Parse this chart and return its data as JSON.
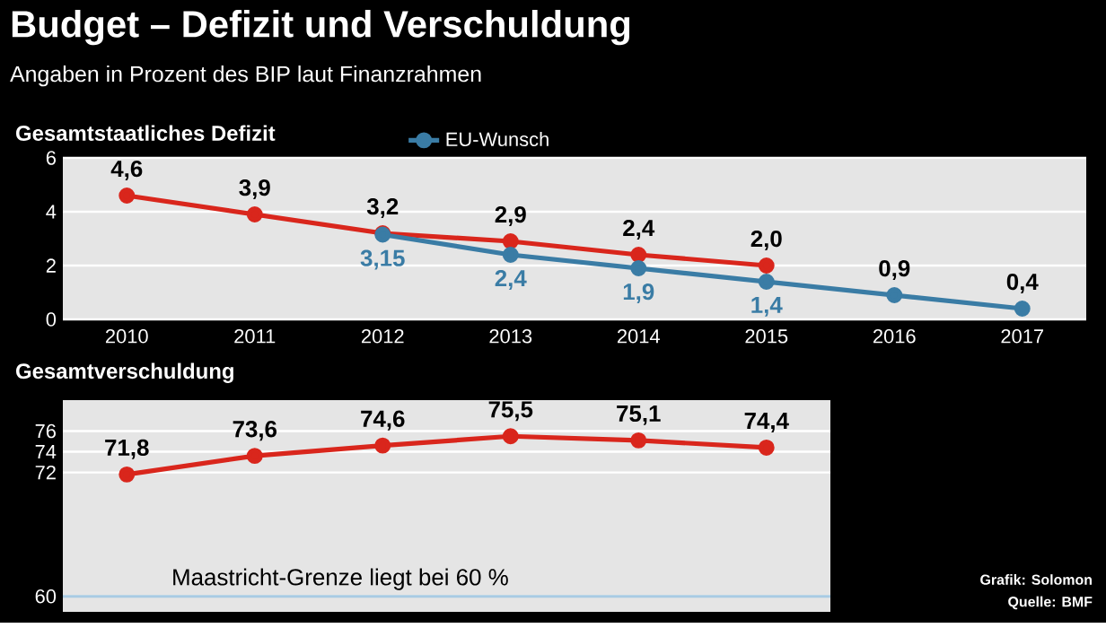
{
  "chart_data": [
    {
      "type": "line",
      "title": "Budget – Defizit und Verschuldung",
      "subtitle": "Angaben in Prozent des BIP laut Finanzrahmen",
      "xlabel": "Gesamtstaatliches Defizit",
      "categories": [
        "2010",
        "2011",
        "2012",
        "2013",
        "2014",
        "2015",
        "2016",
        "2017"
      ],
      "series": [
        {
          "color": "#d9261c",
          "values": [
            4.6,
            3.9,
            3.2,
            2.9,
            2.4,
            2.0,
            null,
            null
          ],
          "value_labels": [
            "4,6",
            "3,9",
            "3,2",
            "2,9",
            "2,4",
            "2,0",
            null,
            null
          ]
        },
        {
          "name": "EU-Wunsch",
          "color": "#3a7ca5",
          "values": [
            null,
            null,
            3.15,
            2.4,
            1.9,
            1.4,
            0.9,
            0.4
          ],
          "value_labels": [
            null,
            null,
            "3,15",
            "2,4",
            "1,9",
            "1,4",
            "0,9",
            "0,4"
          ]
        }
      ],
      "ylim": [
        0,
        6
      ],
      "yticks": [
        0,
        2,
        4,
        6
      ],
      "grid": "y",
      "legend": "top",
      "marker": "circle",
      "line_style": "solid"
    },
    {
      "type": "line",
      "title": "Gesamtverschuldung",
      "categories": [
        "2010",
        "2011",
        "2012",
        "2013",
        "2014",
        "2015"
      ],
      "series": [
        {
          "color": "#d9261c",
          "values": [
            71.8,
            73.6,
            74.6,
            75.5,
            75.1,
            74.4
          ],
          "value_labels": [
            "71,8",
            "73,6",
            "74,6",
            "75,5",
            "75,1",
            "74,4"
          ]
        }
      ],
      "ylim": [
        58.5,
        79
      ],
      "yticks": [
        60,
        72,
        74,
        76
      ],
      "grid": "y",
      "tick_labels": "y",
      "marker": "circle",
      "line_style": "solid",
      "ref_lines": [
        {
          "axis": "y",
          "value": 60,
          "label": "Maastricht-Grenze liegt bei 60 %",
          "color": "#a9cbe3"
        }
      ],
      "annotations": [
        "Grafik: Solomon",
        "Quelle: BMF"
      ]
    }
  ]
}
